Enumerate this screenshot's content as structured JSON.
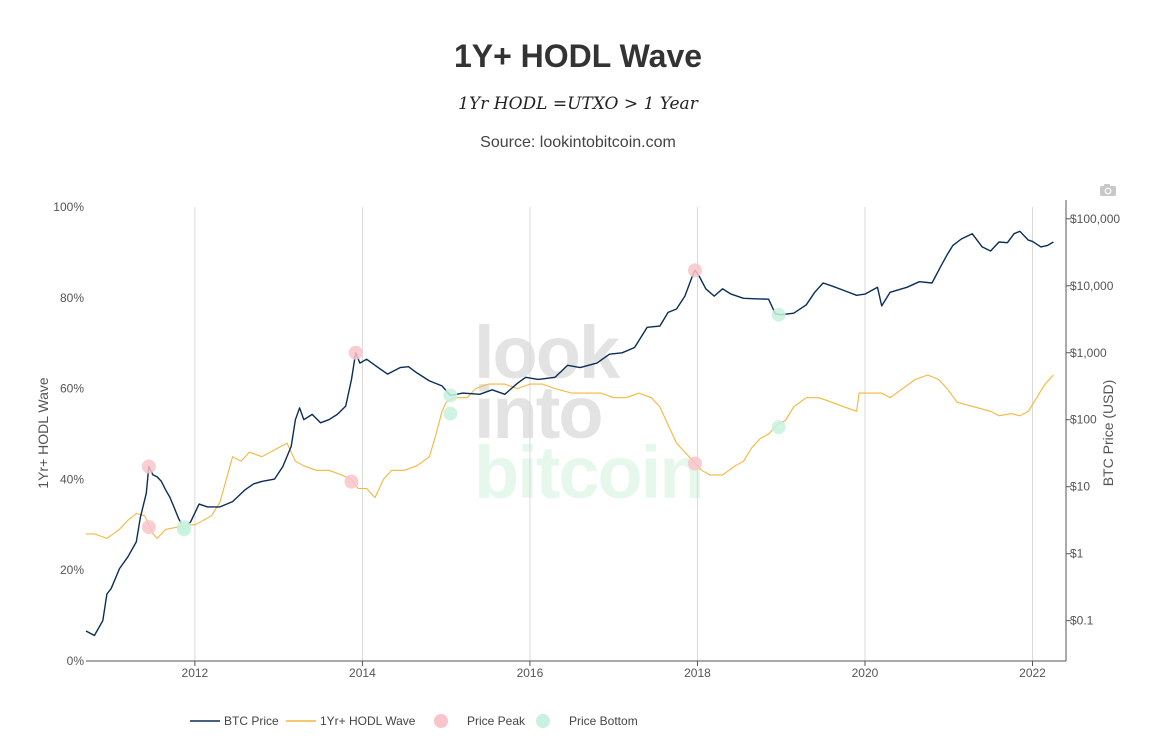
{
  "title": "1Y+ HODL Wave",
  "subtitle": "1Yr HODL =UTXO > 1 Year",
  "source": "Source: lookintobitcoin.com",
  "watermark": [
    "look",
    "into",
    "bitcoin"
  ],
  "toolbar": {
    "camera_icon": "camera-icon"
  },
  "chart_data": {
    "type": "line",
    "xlim": [
      2010.7,
      2022.4
    ],
    "x_ticks": [
      2012,
      2014,
      2016,
      2018,
      2020,
      2022
    ],
    "x_tick_labels": [
      "2012",
      "2014",
      "2016",
      "2018",
      "2020",
      "2022"
    ],
    "yaxis_left": {
      "label": "1Yr+ HODL Wave",
      "range": [
        0,
        100
      ],
      "ticks": [
        0,
        20,
        40,
        60,
        80,
        100
      ],
      "tick_labels": [
        "0%",
        "20%",
        "40%",
        "60%",
        "80%",
        "100%"
      ]
    },
    "yaxis_right": {
      "label": "BTC Price (USD)",
      "scale": "log",
      "range": [
        0.025,
        150000
      ],
      "ticks": [
        0.1,
        1,
        10,
        100,
        1000,
        10000,
        100000
      ],
      "tick_labels": [
        "$0.1",
        "$1",
        "$10",
        "$100",
        "$1,000",
        "$10,000",
        "$100,000"
      ]
    },
    "grid": {
      "vertical": true,
      "horizontal": false
    },
    "legend_position": "bottom",
    "series": [
      {
        "name": "BTC Price",
        "axis": "right",
        "color": "#0b2d55",
        "points": [
          [
            2010.7,
            0.07
          ],
          [
            2010.8,
            0.06
          ],
          [
            2010.9,
            0.1
          ],
          [
            2010.95,
            0.25
          ],
          [
            2011.0,
            0.3
          ],
          [
            2011.1,
            0.6
          ],
          [
            2011.2,
            0.9
          ],
          [
            2011.3,
            1.5
          ],
          [
            2011.35,
            3.5
          ],
          [
            2011.42,
            8
          ],
          [
            2011.45,
            20
          ],
          [
            2011.5,
            15
          ],
          [
            2011.55,
            14
          ],
          [
            2011.6,
            12
          ],
          [
            2011.65,
            9
          ],
          [
            2011.7,
            7
          ],
          [
            2011.75,
            5
          ],
          [
            2011.8,
            3.5
          ],
          [
            2011.87,
            2.3
          ],
          [
            2011.95,
            3
          ],
          [
            2012.05,
            5.5
          ],
          [
            2012.15,
            5
          ],
          [
            2012.3,
            5
          ],
          [
            2012.45,
            6
          ],
          [
            2012.6,
            9
          ],
          [
            2012.7,
            11
          ],
          [
            2012.8,
            12
          ],
          [
            2012.95,
            13
          ],
          [
            2013.05,
            20
          ],
          [
            2013.15,
            40
          ],
          [
            2013.2,
            100
          ],
          [
            2013.25,
            150
          ],
          [
            2013.3,
            100
          ],
          [
            2013.4,
            120
          ],
          [
            2013.5,
            90
          ],
          [
            2013.6,
            100
          ],
          [
            2013.7,
            120
          ],
          [
            2013.8,
            160
          ],
          [
            2013.87,
            400
          ],
          [
            2013.92,
            1000
          ],
          [
            2013.97,
            700
          ],
          [
            2014.05,
            800
          ],
          [
            2014.15,
            650
          ],
          [
            2014.3,
            480
          ],
          [
            2014.45,
            600
          ],
          [
            2014.55,
            620
          ],
          [
            2014.65,
            500
          ],
          [
            2014.8,
            380
          ],
          [
            2014.95,
            320
          ],
          [
            2015.05,
            230
          ],
          [
            2015.2,
            250
          ],
          [
            2015.4,
            240
          ],
          [
            2015.55,
            280
          ],
          [
            2015.7,
            240
          ],
          [
            2015.85,
            350
          ],
          [
            2015.95,
            430
          ],
          [
            2016.1,
            400
          ],
          [
            2016.3,
            430
          ],
          [
            2016.45,
            650
          ],
          [
            2016.6,
            600
          ],
          [
            2016.8,
            700
          ],
          [
            2016.95,
            950
          ],
          [
            2017.1,
            1000
          ],
          [
            2017.25,
            1200
          ],
          [
            2017.4,
            2400
          ],
          [
            2017.55,
            2500
          ],
          [
            2017.65,
            4000
          ],
          [
            2017.75,
            4500
          ],
          [
            2017.85,
            7000
          ],
          [
            2017.93,
            13000
          ],
          [
            2017.97,
            17000
          ],
          [
            2018.02,
            14000
          ],
          [
            2018.1,
            9000
          ],
          [
            2018.2,
            7000
          ],
          [
            2018.3,
            9000
          ],
          [
            2018.4,
            7500
          ],
          [
            2018.55,
            6500
          ],
          [
            2018.7,
            6400
          ],
          [
            2018.85,
            6300
          ],
          [
            2018.93,
            3800
          ],
          [
            2019.0,
            3700
          ],
          [
            2019.15,
            3900
          ],
          [
            2019.3,
            5200
          ],
          [
            2019.4,
            8000
          ],
          [
            2019.5,
            11000
          ],
          [
            2019.6,
            10000
          ],
          [
            2019.75,
            8500
          ],
          [
            2019.9,
            7200
          ],
          [
            2020.0,
            7500
          ],
          [
            2020.15,
            9500
          ],
          [
            2020.2,
            5000
          ],
          [
            2020.3,
            8000
          ],
          [
            2020.5,
            9500
          ],
          [
            2020.65,
            11500
          ],
          [
            2020.8,
            11000
          ],
          [
            2020.9,
            19000
          ],
          [
            2020.98,
            29000
          ],
          [
            2021.05,
            40000
          ],
          [
            2021.15,
            50000
          ],
          [
            2021.28,
            60000
          ],
          [
            2021.4,
            38000
          ],
          [
            2021.5,
            33000
          ],
          [
            2021.6,
            45000
          ],
          [
            2021.7,
            44000
          ],
          [
            2021.78,
            60000
          ],
          [
            2021.85,
            65000
          ],
          [
            2021.95,
            48000
          ],
          [
            2022.0,
            46000
          ],
          [
            2022.1,
            38000
          ],
          [
            2022.18,
            40000
          ],
          [
            2022.25,
            45000
          ]
        ]
      },
      {
        "name": "1Yr+ HODL Wave",
        "axis": "left",
        "color": "#f4b73d",
        "points": [
          [
            2010.7,
            28
          ],
          [
            2010.8,
            28
          ],
          [
            2010.95,
            27
          ],
          [
            2011.1,
            29
          ],
          [
            2011.2,
            31
          ],
          [
            2011.3,
            32.5
          ],
          [
            2011.4,
            32
          ],
          [
            2011.5,
            28
          ],
          [
            2011.55,
            27
          ],
          [
            2011.65,
            29
          ],
          [
            2011.8,
            29.5
          ],
          [
            2011.9,
            30
          ],
          [
            2012.0,
            30
          ],
          [
            2012.1,
            31
          ],
          [
            2012.2,
            32
          ],
          [
            2012.3,
            35
          ],
          [
            2012.45,
            45
          ],
          [
            2012.55,
            44
          ],
          [
            2012.65,
            46
          ],
          [
            2012.8,
            45
          ],
          [
            2012.9,
            46
          ],
          [
            2013.0,
            47
          ],
          [
            2013.1,
            48
          ],
          [
            2013.2,
            44
          ],
          [
            2013.3,
            43
          ],
          [
            2013.45,
            42
          ],
          [
            2013.6,
            42
          ],
          [
            2013.75,
            41
          ],
          [
            2013.87,
            40
          ],
          [
            2013.95,
            38
          ],
          [
            2014.05,
            38
          ],
          [
            2014.15,
            36
          ],
          [
            2014.25,
            40
          ],
          [
            2014.35,
            42
          ],
          [
            2014.5,
            42
          ],
          [
            2014.65,
            43
          ],
          [
            2014.8,
            45
          ],
          [
            2014.88,
            50
          ],
          [
            2014.95,
            55
          ],
          [
            2015.0,
            57
          ],
          [
            2015.1,
            58
          ],
          [
            2015.25,
            58
          ],
          [
            2015.35,
            60
          ],
          [
            2015.5,
            61
          ],
          [
            2015.7,
            61
          ],
          [
            2015.85,
            60
          ],
          [
            2016.0,
            61
          ],
          [
            2016.15,
            61
          ],
          [
            2016.3,
            60
          ],
          [
            2016.5,
            59
          ],
          [
            2016.7,
            59
          ],
          [
            2016.85,
            59
          ],
          [
            2017.0,
            58
          ],
          [
            2017.15,
            58
          ],
          [
            2017.3,
            59
          ],
          [
            2017.45,
            58
          ],
          [
            2017.55,
            56
          ],
          [
            2017.65,
            52
          ],
          [
            2017.75,
            48
          ],
          [
            2017.85,
            46
          ],
          [
            2017.95,
            44
          ],
          [
            2018.05,
            42
          ],
          [
            2018.15,
            41
          ],
          [
            2018.3,
            41
          ],
          [
            2018.45,
            43
          ],
          [
            2018.55,
            44
          ],
          [
            2018.65,
            47
          ],
          [
            2018.75,
            49
          ],
          [
            2018.85,
            50
          ],
          [
            2018.95,
            52
          ],
          [
            2019.05,
            53
          ],
          [
            2019.15,
            56
          ],
          [
            2019.3,
            58
          ],
          [
            2019.45,
            58
          ],
          [
            2019.6,
            57
          ],
          [
            2019.75,
            56
          ],
          [
            2019.9,
            55
          ],
          [
            2019.93,
            59
          ],
          [
            2020.0,
            59
          ],
          [
            2020.2,
            59
          ],
          [
            2020.3,
            58
          ],
          [
            2020.45,
            60
          ],
          [
            2020.6,
            62
          ],
          [
            2020.75,
            63
          ],
          [
            2020.88,
            62
          ],
          [
            2020.98,
            60
          ],
          [
            2021.1,
            57
          ],
          [
            2021.3,
            56
          ],
          [
            2021.5,
            55
          ],
          [
            2021.6,
            54
          ],
          [
            2021.75,
            54.5
          ],
          [
            2021.85,
            54
          ],
          [
            2021.95,
            55
          ],
          [
            2022.05,
            58
          ],
          [
            2022.15,
            61
          ],
          [
            2022.25,
            63
          ]
        ]
      }
    ],
    "markers": [
      {
        "name": "Price Peak",
        "color": "#f9c4cb",
        "points": [
          {
            "x": 2011.45,
            "axis": "right",
            "y": 20
          },
          {
            "x": 2011.45,
            "axis": "left",
            "y": 29.5
          },
          {
            "x": 2013.92,
            "axis": "right",
            "y": 1000
          },
          {
            "x": 2013.87,
            "axis": "left",
            "y": 39.5
          },
          {
            "x": 2017.97,
            "axis": "right",
            "y": 17000
          },
          {
            "x": 2017.97,
            "axis": "left",
            "y": 43.5
          }
        ]
      },
      {
        "name": "Price Bottom",
        "color": "#c8f1df",
        "points": [
          {
            "x": 2011.87,
            "axis": "right",
            "y": 2.3
          },
          {
            "x": 2011.87,
            "axis": "left",
            "y": 29.5
          },
          {
            "x": 2015.05,
            "axis": "right",
            "y": 230
          },
          {
            "x": 2015.05,
            "axis": "left",
            "y": 54.5
          },
          {
            "x": 2018.97,
            "axis": "right",
            "y": 3700
          },
          {
            "x": 2018.97,
            "axis": "left",
            "y": 51.5
          }
        ]
      }
    ]
  }
}
